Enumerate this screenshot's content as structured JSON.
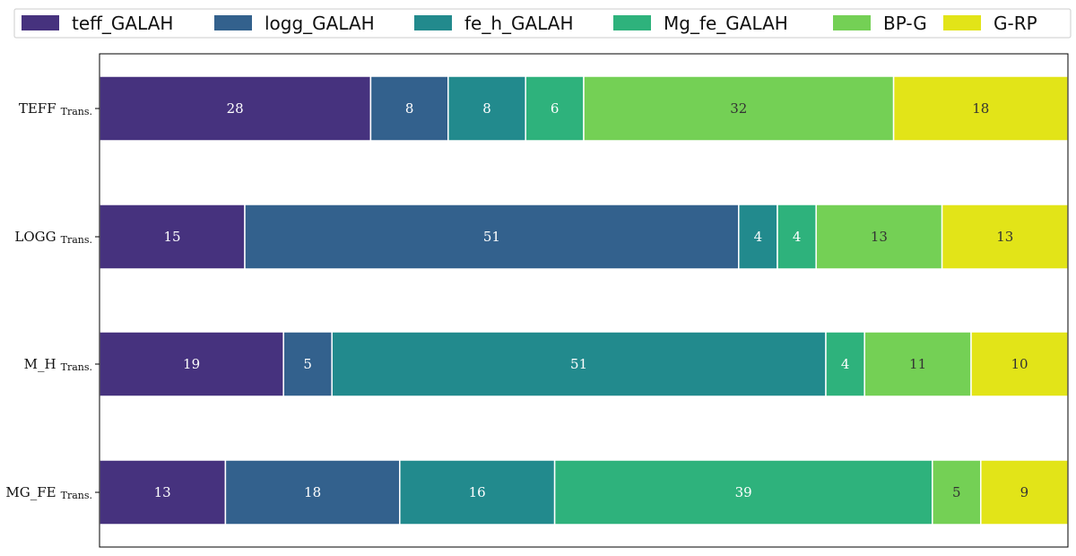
{
  "chart_data": {
    "type": "bar",
    "orientation": "horizontal",
    "stacked": true,
    "title": "",
    "xlabel": "",
    "ylabel": "",
    "xlim": [
      0,
      100
    ],
    "legend_position": "top",
    "categories": [
      {
        "name": "TEFF",
        "suffix": "Trans."
      },
      {
        "name": "LOGG",
        "suffix": "Trans."
      },
      {
        "name": "M_H",
        "suffix": "Trans."
      },
      {
        "name": "MG_FE",
        "suffix": "Trans."
      }
    ],
    "series": [
      {
        "name": "teff_GALAH",
        "color": "#46327e",
        "label_color": "#ffffff",
        "values": [
          28,
          15,
          19,
          13
        ]
      },
      {
        "name": "logg_GALAH",
        "color": "#33618d",
        "label_color": "#ffffff",
        "values": [
          8,
          51,
          5,
          18
        ]
      },
      {
        "name": "fe_h_GALAH",
        "color": "#228a8d",
        "label_color": "#ffffff",
        "values": [
          8,
          4,
          51,
          16
        ]
      },
      {
        "name": "Mg_fe_GALAH",
        "color": "#2eb27c",
        "label_color": "#ffffff",
        "values": [
          6,
          4,
          4,
          39
        ]
      },
      {
        "name": "BP-G",
        "color": "#74d055",
        "label_color": "#333333",
        "values": [
          32,
          13,
          11,
          5
        ]
      },
      {
        "name": "G-RP",
        "color": "#e2e418",
        "label_color": "#333333",
        "values": [
          18,
          13,
          10,
          9
        ]
      }
    ]
  }
}
